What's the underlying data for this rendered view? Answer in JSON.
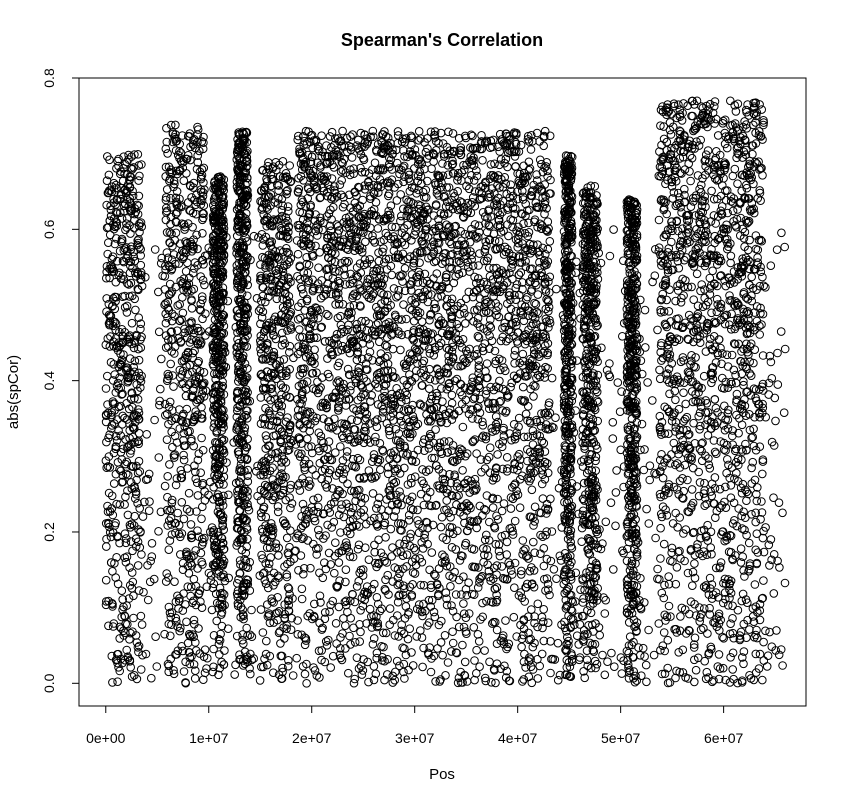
{
  "chart_data": {
    "type": "scatter",
    "title": "Spearman's Correlation",
    "xlabel": "Pos",
    "ylabel": "abs(spCor)",
    "xlim": [
      -2600000,
      68000000
    ],
    "ylim": [
      -0.03,
      0.8
    ],
    "x_ticks": [
      0,
      10000000,
      20000000,
      30000000,
      40000000,
      50000000,
      60000000
    ],
    "x_tick_labels": [
      "0e+00",
      "1e+07",
      "2e+07",
      "3e+07",
      "4e+07",
      "5e+07",
      "6e+07"
    ],
    "y_ticks": [
      0.0,
      0.2,
      0.4,
      0.6,
      0.8
    ],
    "y_tick_labels": [
      "0.0",
      "0.2",
      "0.4",
      "0.6",
      "0.8"
    ],
    "marker": "open-circle",
    "marker_color": "#000000",
    "grid": false,
    "legend": "none",
    "dense_regions": [
      {
        "x_start": 0,
        "x_end": 3500000,
        "y_max": 0.7
      },
      {
        "x_start": 5700000,
        "x_end": 9600000,
        "y_max": 0.74
      },
      {
        "x_start": 10400000,
        "x_end": 11500000,
        "y_max": 0.67
      },
      {
        "x_start": 12700000,
        "x_end": 13800000,
        "y_max": 0.73
      },
      {
        "x_start": 15000000,
        "x_end": 18000000,
        "y_max": 0.69
      },
      {
        "x_start": 18600000,
        "x_end": 43200000,
        "y_max": 0.73
      },
      {
        "x_start": 44500000,
        "x_end": 45300000,
        "y_max": 0.7
      },
      {
        "x_start": 46300000,
        "x_end": 47800000,
        "y_max": 0.66
      },
      {
        "x_start": 50600000,
        "x_end": 51600000,
        "y_max": 0.64
      },
      {
        "x_start": 53700000,
        "x_end": 63900000,
        "y_max": 0.77
      }
    ]
  }
}
